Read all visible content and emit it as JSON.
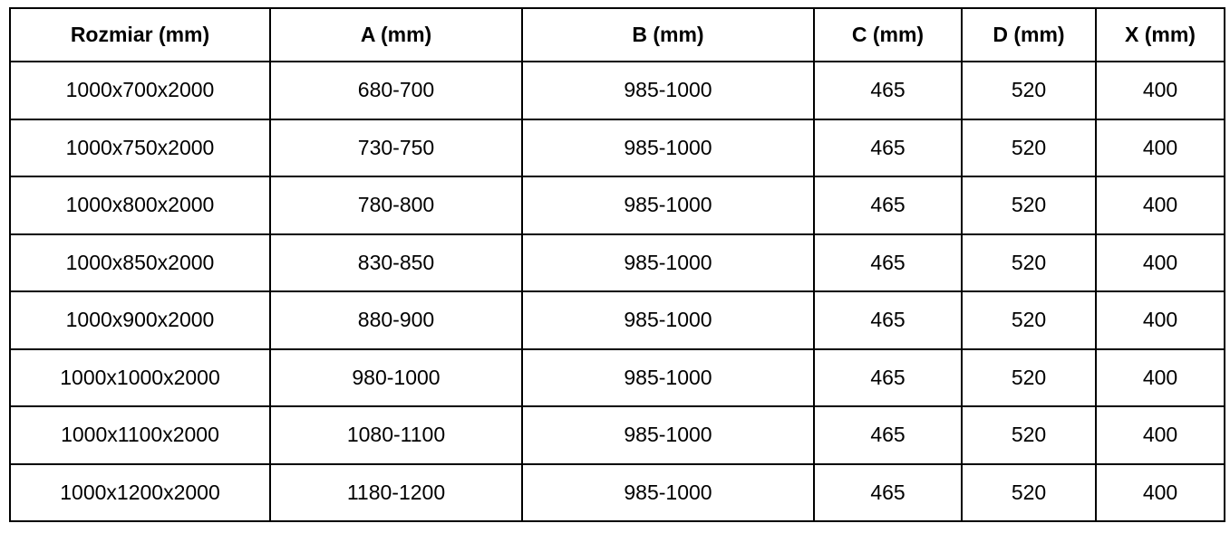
{
  "table": {
    "headers": [
      "Rozmiar (mm)",
      "A (mm)",
      "B (mm)",
      "C (mm)",
      "D (mm)",
      "X (mm)"
    ],
    "rows": [
      [
        "1000x700x2000",
        "680-700",
        "985-1000",
        "465",
        "520",
        "400"
      ],
      [
        "1000x750x2000",
        "730-750",
        "985-1000",
        "465",
        "520",
        "400"
      ],
      [
        "1000x800x2000",
        "780-800",
        "985-1000",
        "465",
        "520",
        "400"
      ],
      [
        "1000x850x2000",
        "830-850",
        "985-1000",
        "465",
        "520",
        "400"
      ],
      [
        "1000x900x2000",
        "880-900",
        "985-1000",
        "465",
        "520",
        "400"
      ],
      [
        "1000x1000x2000",
        "980-1000",
        "985-1000",
        "465",
        "520",
        "400"
      ],
      [
        "1000x1100x2000",
        "1080-1100",
        "985-1000",
        "465",
        "520",
        "400"
      ],
      [
        "1000x1200x2000",
        "1180-1200",
        "985-1000",
        "465",
        "520",
        "400"
      ]
    ]
  },
  "colors": {
    "border": "#000000",
    "background": "#ffffff",
    "text": "#000000"
  }
}
